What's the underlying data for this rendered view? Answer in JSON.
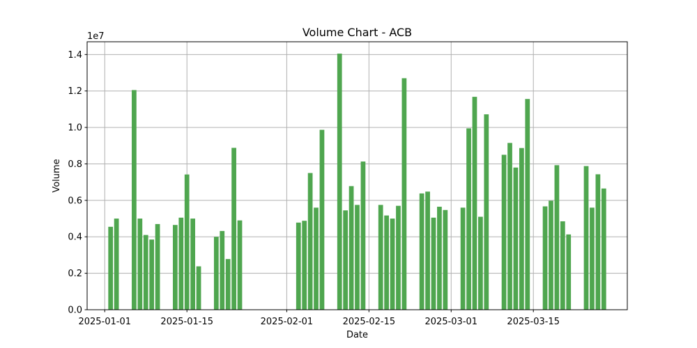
{
  "chart_data": {
    "type": "bar",
    "title": "Volume Chart - ACB",
    "xlabel": "Date",
    "ylabel": "Volume",
    "y_offset_label": "1e7",
    "bar_color": "#4fa64f",
    "grid": true,
    "xlim": [
      "2024-12-29",
      "2025-03-31"
    ],
    "ylim": [
      0,
      14700000
    ],
    "x_ticks": [
      "2025-01-01",
      "2025-01-15",
      "2025-02-01",
      "2025-02-15",
      "2025-03-01",
      "2025-03-15"
    ],
    "y_ticks": [
      {
        "value": 0,
        "label": "0.0"
      },
      {
        "value": 2000000,
        "label": "0.2"
      },
      {
        "value": 4000000,
        "label": "0.4"
      },
      {
        "value": 6000000,
        "label": "0.6"
      },
      {
        "value": 8000000,
        "label": "0.8"
      },
      {
        "value": 10000000,
        "label": "1.0"
      },
      {
        "value": 12000000,
        "label": "1.2"
      },
      {
        "value": 14000000,
        "label": "1.4"
      }
    ],
    "x": [
      "2025-01-02",
      "2025-01-03",
      "2025-01-06",
      "2025-01-07",
      "2025-01-08",
      "2025-01-09",
      "2025-01-10",
      "2025-01-13",
      "2025-01-14",
      "2025-01-15",
      "2025-01-16",
      "2025-01-17",
      "2025-01-20",
      "2025-01-21",
      "2025-01-22",
      "2025-01-23",
      "2025-01-24",
      "2025-02-03",
      "2025-02-04",
      "2025-02-05",
      "2025-02-06",
      "2025-02-07",
      "2025-02-10",
      "2025-02-11",
      "2025-02-12",
      "2025-02-13",
      "2025-02-14",
      "2025-02-17",
      "2025-02-18",
      "2025-02-19",
      "2025-02-20",
      "2025-02-21",
      "2025-02-24",
      "2025-02-25",
      "2025-02-26",
      "2025-02-27",
      "2025-02-28",
      "2025-03-03",
      "2025-03-04",
      "2025-03-05",
      "2025-03-06",
      "2025-03-07",
      "2025-03-10",
      "2025-03-11",
      "2025-03-12",
      "2025-03-13",
      "2025-03-14",
      "2025-03-17",
      "2025-03-18",
      "2025-03-19",
      "2025-03-20",
      "2025-03-21",
      "2025-03-24",
      "2025-03-25",
      "2025-03-26",
      "2025-03-27"
    ],
    "values": [
      4550000,
      5000000,
      12050000,
      5000000,
      4100000,
      3850000,
      4700000,
      4650000,
      5050000,
      7420000,
      5000000,
      2380000,
      4000000,
      4320000,
      2780000,
      8880000,
      4900000,
      4780000,
      4880000,
      7500000,
      5600000,
      9870000,
      14050000,
      5450000,
      6780000,
      5750000,
      8130000,
      5750000,
      5170000,
      5000000,
      5700000,
      12700000,
      6380000,
      6480000,
      5050000,
      5650000,
      5470000,
      5600000,
      9950000,
      11680000,
      5100000,
      10720000,
      8500000,
      9150000,
      7800000,
      8870000,
      11560000,
      5670000,
      5980000,
      7930000,
      4850000,
      4130000,
      7880000,
      5600000,
      7430000,
      6650000
    ]
  }
}
